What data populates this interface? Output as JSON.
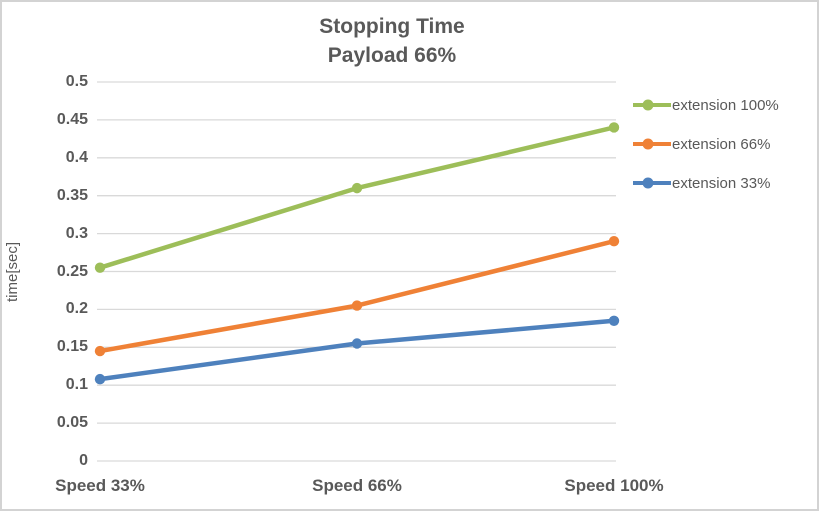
{
  "chart": {
    "title_line1": "Stopping Time",
    "title_line2": "Payload 66%",
    "ylabel": "time[sec]"
  },
  "colors": {
    "grid": "#D9D9D9",
    "text": "#595959",
    "border": "#D3D3D3",
    "background": "#FFFFFF"
  },
  "chart_data": {
    "type": "line",
    "title": "Stopping Time",
    "subtitle": "Payload 66%",
    "categories": [
      "Speed 33%",
      "Speed 66%",
      "Speed 100%"
    ],
    "series": [
      {
        "name": "extension 100%",
        "color": "#9DBE59",
        "values": [
          0.255,
          0.36,
          0.44
        ]
      },
      {
        "name": "extension 66%",
        "color": "#EF8136",
        "values": [
          0.145,
          0.205,
          0.29
        ]
      },
      {
        "name": "extension 33%",
        "color": "#4E81BD",
        "values": [
          0.108,
          0.155,
          0.185
        ]
      }
    ],
    "xlabel": "",
    "ylabel": "time[sec]",
    "ylim": [
      0,
      0.5
    ],
    "ytick_step": 0.05,
    "grid": true,
    "legend_position": "right",
    "marker": "circle"
  }
}
